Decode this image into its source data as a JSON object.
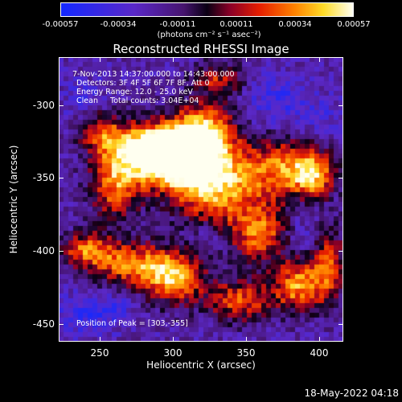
{
  "colorbar": {
    "ticks": [
      "-0.00057",
      "-0.00034",
      "-0.00011",
      "0.00011",
      "0.00034",
      "0.00057"
    ],
    "unit_label": "(photons cm⁻² s⁻¹ asec⁻²)"
  },
  "title": "Reconstructed RHESSI Image",
  "info": {
    "time": "7-Nov-2013 14:37:00.000 to 14:43:00.000",
    "detectors": "Detectors: 3F 4F 5F 6F 7F 8F, Att 0",
    "energy": "Energy Range: 12.0 - 25.0 keV",
    "clean": "Clean     Total counts: 3.04E+04"
  },
  "peak": "Position of Peak = [303,-355]",
  "timestamp": "18-May-2022 04:18",
  "chart_data": {
    "type": "heatmap",
    "title": "Reconstructed RHESSI Image",
    "xlabel": "Heliocentric X (arcsec)",
    "ylabel": "Heliocentric Y (arcsec)",
    "xlim": [
      222,
      415
    ],
    "ylim": [
      -463,
      -270
    ],
    "x_ticks": [
      "250",
      "300",
      "350",
      "400"
    ],
    "y_ticks": [
      "-300",
      "-350",
      "-400",
      "-450"
    ],
    "colorbar_range": [
      -0.00057,
      0.00057
    ],
    "peak_position": [
      303,
      -355
    ],
    "emission_blobs": [
      {
        "x": 305,
        "y": -340,
        "sx": 22,
        "sy": 15,
        "value": 0.00057
      },
      {
        "x": 285,
        "y": -332,
        "sx": 18,
        "sy": 12,
        "value": 0.00045
      },
      {
        "x": 320,
        "y": -320,
        "sx": 14,
        "sy": 13,
        "value": 0.0004
      },
      {
        "x": 330,
        "y": -360,
        "sx": 20,
        "sy": 18,
        "value": 0.00034
      },
      {
        "x": 260,
        "y": -355,
        "sx": 12,
        "sy": 18,
        "value": 0.0003
      },
      {
        "x": 375,
        "y": -345,
        "sx": 18,
        "sy": 14,
        "value": 0.0003
      },
      {
        "x": 395,
        "y": -350,
        "sx": 10,
        "sy": 10,
        "value": 0.0003
      },
      {
        "x": 360,
        "y": -390,
        "sx": 15,
        "sy": 14,
        "value": 0.00028
      },
      {
        "x": 300,
        "y": -420,
        "sx": 14,
        "sy": 12,
        "value": 0.0004
      },
      {
        "x": 270,
        "y": -410,
        "sx": 20,
        "sy": 10,
        "value": 0.0003
      },
      {
        "x": 240,
        "y": -400,
        "sx": 12,
        "sy": 8,
        "value": 0.00022
      },
      {
        "x": 345,
        "y": -435,
        "sx": 16,
        "sy": 10,
        "value": 0.00025
      },
      {
        "x": 385,
        "y": -425,
        "sx": 12,
        "sy": 12,
        "value": 0.00035
      },
      {
        "x": 250,
        "y": -320,
        "sx": 10,
        "sy": 10,
        "value": 0.00018
      },
      {
        "x": 405,
        "y": -410,
        "sx": 8,
        "sy": 18,
        "value": 0.00022
      },
      {
        "x": 330,
        "y": -285,
        "sx": 12,
        "sy": 8,
        "value": 0.00015
      }
    ],
    "negative_regions": [
      {
        "x": 370,
        "y": -300,
        "sx": 14,
        "sy": 12,
        "value": -0.00034
      },
      {
        "x": 240,
        "y": -300,
        "sx": 10,
        "sy": 10,
        "value": -0.00025
      },
      {
        "x": 240,
        "y": -445,
        "sx": 14,
        "sy": 10,
        "value": -0.00034
      },
      {
        "x": 385,
        "y": -390,
        "sx": 10,
        "sy": 10,
        "value": -0.0003
      },
      {
        "x": 400,
        "y": -310,
        "sx": 10,
        "sy": 10,
        "value": -0.0002
      },
      {
        "x": 325,
        "y": -390,
        "sx": 10,
        "sy": 8,
        "value": -0.00018
      },
      {
        "x": 260,
        "y": -440,
        "sx": 8,
        "sy": 6,
        "value": -0.00025
      }
    ]
  }
}
